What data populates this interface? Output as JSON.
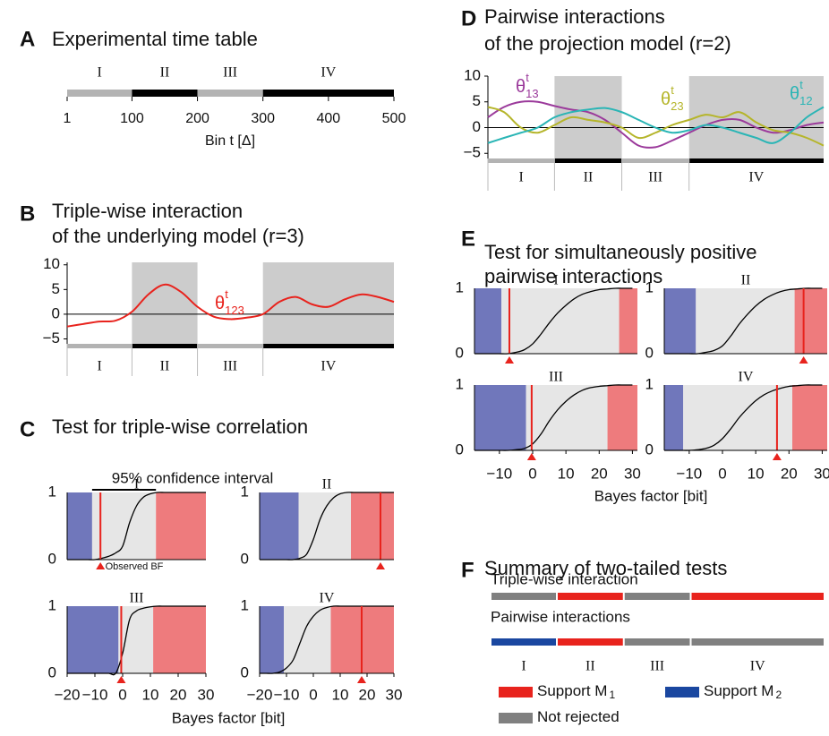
{
  "colors": {
    "reject_low": "#7077bb",
    "accept": "#e6e6e6",
    "reject_high": "#ee7b7d",
    "observed": "#e8231d",
    "shade": "#cccccc"
  },
  "A": {
    "label": "A",
    "title": "Experimental time table",
    "segments": [
      {
        "name": "I",
        "start": 1,
        "end": 100,
        "color": "#b3b3b3"
      },
      {
        "name": "II",
        "start": 100,
        "end": 200,
        "color": "#000000"
      },
      {
        "name": "III",
        "start": 200,
        "end": 300,
        "color": "#b3b3b3"
      },
      {
        "name": "IV",
        "start": 300,
        "end": 500,
        "color": "#000000"
      }
    ],
    "xlim": [
      1,
      500
    ],
    "xticks": [
      1,
      100,
      200,
      300,
      400,
      500
    ],
    "xlabel": "Bin t [Δ]"
  },
  "B": {
    "label": "B",
    "title_lines": [
      "Triple-wise interaction",
      "of the underlying model (r=3)"
    ],
    "ylim": [
      -6,
      10.5
    ],
    "yticks": [
      10,
      5,
      0,
      {
        "value": -5,
        "label": "−5"
      }
    ],
    "t": [
      1,
      25,
      50,
      75,
      100,
      125,
      150,
      175,
      200,
      225,
      250,
      275,
      300,
      325,
      350,
      375,
      400,
      425,
      450,
      475,
      500
    ],
    "series": [
      {
        "symbol": "θ",
        "sup": "t",
        "sub": "123",
        "color": "#e8231d",
        "values": [
          -2.5,
          -2,
          -1.5,
          -1.3,
          0.5,
          4,
          6,
          4.5,
          1.5,
          -0.5,
          -1,
          -0.7,
          0,
          2.5,
          3.5,
          2,
          1.5,
          3,
          4,
          3.5,
          2.5
        ]
      }
    ]
  },
  "C": {
    "label": "C",
    "title": "Test for triple-wise correlation",
    "xlim": [
      -20,
      30
    ],
    "xticks": [
      {
        "value": -20,
        "label": "−20"
      },
      {
        "value": -10,
        "label": "−10"
      },
      0,
      10,
      20,
      30
    ],
    "ylim": [
      0,
      1
    ],
    "yticks": [
      0,
      1
    ],
    "xlabel": "Bayes factor [bit]",
    "ci_annotation": "95% confidence interval",
    "observed_annotation": "Observed BF",
    "cdf_x": [
      -20,
      -17.5,
      -15,
      -12.5,
      -10,
      -7.5,
      -5,
      -2.5,
      0,
      2.5,
      5,
      7.5,
      10,
      12.5,
      15,
      17.5,
      20,
      22.5,
      25,
      27.5,
      30
    ],
    "tests": [
      {
        "ci": [
          -11,
          12
        ],
        "observed": -8,
        "cdf": [
          0,
          0,
          0,
          0,
          0,
          0.02,
          0.05,
          0.1,
          0.2,
          0.55,
          0.8,
          0.93,
          0.98,
          1,
          1,
          1,
          1,
          1,
          1,
          1,
          1
        ]
      },
      {
        "ci": [
          -5.5,
          14
        ],
        "observed": 25,
        "cdf": [
          0,
          0,
          0,
          0,
          0,
          0,
          0.02,
          0.08,
          0.3,
          0.6,
          0.8,
          0.92,
          0.98,
          1,
          1,
          1,
          1,
          1,
          1,
          1,
          1
        ]
      },
      {
        "ci": [
          -1.5,
          11
        ],
        "observed": -0.5,
        "cdf": [
          0,
          0,
          0,
          0,
          0,
          0,
          0,
          0,
          0.3,
          0.8,
          0.93,
          0.97,
          0.99,
          1,
          1,
          1,
          1,
          1,
          1,
          1,
          1
        ]
      },
      {
        "ci": [
          -11,
          6.5
        ],
        "observed": 18,
        "cdf": [
          0,
          0,
          0,
          0.02,
          0.08,
          0.2,
          0.45,
          0.7,
          0.85,
          0.94,
          0.98,
          1,
          1,
          1,
          1,
          1,
          1,
          1,
          1,
          1,
          1
        ]
      }
    ]
  },
  "D": {
    "label": "D",
    "title_lines": [
      "Pairwise interactions",
      "of the projection model (r=2)"
    ],
    "ylim": [
      -6,
      10
    ],
    "yticks": [
      10,
      5,
      0,
      {
        "value": -5,
        "label": "−5"
      }
    ],
    "t": [
      1,
      25,
      50,
      75,
      100,
      125,
      150,
      175,
      200,
      225,
      250,
      275,
      300,
      325,
      350,
      375,
      400,
      425,
      450,
      475,
      500
    ],
    "series": [
      {
        "symbol": "θ",
        "sup": "t",
        "sub": "13",
        "color": "#9b3a9b",
        "values": [
          2,
          4,
          5,
          5,
          4.2,
          3.5,
          3,
          1.5,
          -1,
          -3.5,
          -3.8,
          -2.5,
          -1,
          0.5,
          1.5,
          1.5,
          0,
          -1,
          -0.5,
          0.5,
          1
        ]
      },
      {
        "symbol": "θ",
        "sup": "t",
        "sub": "23",
        "color": "#b5b52a",
        "values": [
          4,
          3,
          0,
          -1,
          0.5,
          2,
          1.5,
          1,
          0,
          -2,
          -1,
          0.5,
          1.5,
          2.5,
          2,
          3,
          1,
          -0.5,
          -1,
          -2,
          -3.5
        ]
      },
      {
        "symbol": "θ",
        "sup": "t",
        "sub": "12",
        "color": "#2ab5b5",
        "values": [
          -3,
          -2,
          -1,
          0,
          2,
          3,
          3.5,
          3.8,
          3,
          1.5,
          0,
          -1,
          -0.5,
          0.5,
          0,
          -1,
          -2,
          -3,
          -1,
          2,
          4
        ]
      }
    ]
  },
  "E": {
    "label": "E",
    "title_lines": [
      "Test for simultaneously positive",
      "pairwise interactions"
    ],
    "xlim": [
      -17.5,
      31.5
    ],
    "xticks": [
      {
        "value": -10,
        "label": "−10"
      },
      0,
      10,
      20,
      30
    ],
    "ylim": [
      0,
      1
    ],
    "yticks": [
      0,
      1
    ],
    "xlabel": "Bayes factor [bit]",
    "cdf_x": [
      -17.5,
      -15,
      -12.5,
      -10,
      -7.5,
      -5,
      -2.5,
      0,
      2.5,
      5,
      7.5,
      10,
      12.5,
      15,
      17.5,
      20,
      22.5,
      25,
      27.5,
      30
    ],
    "tests": [
      {
        "ci": [
          -9.4,
          26
        ],
        "observed": -7,
        "cdf": [
          0,
          0,
          0,
          0,
          0,
          0.02,
          0.06,
          0.15,
          0.3,
          0.47,
          0.62,
          0.74,
          0.84,
          0.91,
          0.95,
          0.98,
          0.99,
          1,
          1,
          1
        ]
      },
      {
        "ci": [
          -8,
          21.7
        ],
        "observed": 24.4,
        "cdf": [
          0,
          0,
          0,
          0,
          0,
          0.02,
          0.05,
          0.12,
          0.27,
          0.45,
          0.6,
          0.73,
          0.83,
          0.9,
          0.95,
          0.98,
          0.99,
          1,
          1,
          1
        ]
      },
      {
        "ci": [
          -2,
          22.5
        ],
        "observed": -0.3,
        "cdf": [
          0,
          0,
          0,
          0,
          0,
          0.01,
          0.03,
          0.1,
          0.25,
          0.45,
          0.62,
          0.75,
          0.85,
          0.92,
          0.96,
          0.98,
          0.99,
          1,
          1,
          1
        ]
      },
      {
        "ci": [
          -11.8,
          21
        ],
        "observed": 16.4,
        "cdf": [
          0,
          0,
          0,
          0,
          0.01,
          0.03,
          0.08,
          0.18,
          0.33,
          0.5,
          0.64,
          0.76,
          0.85,
          0.91,
          0.95,
          0.98,
          0.99,
          1,
          1,
          1
        ]
      }
    ]
  },
  "F": {
    "label": "F",
    "title": "Summary of two-tailed tests",
    "rows": [
      {
        "label": "Triple-wise interaction",
        "results": [
          "not_rejected",
          "m1",
          "not_rejected",
          "m1"
        ]
      },
      {
        "label": "Pairwise interactions",
        "results": [
          "m2",
          "m1",
          "not_rejected",
          "not_rejected"
        ]
      }
    ],
    "legend": [
      {
        "key": "m1",
        "label": "Support M",
        "sub": "1",
        "color": "#e8231d"
      },
      {
        "key": "m2",
        "label": "Support M",
        "sub": "2",
        "color": "#1a47a0"
      },
      {
        "key": "not_rejected",
        "label": "Not rejected",
        "color": "#808080"
      }
    ]
  }
}
